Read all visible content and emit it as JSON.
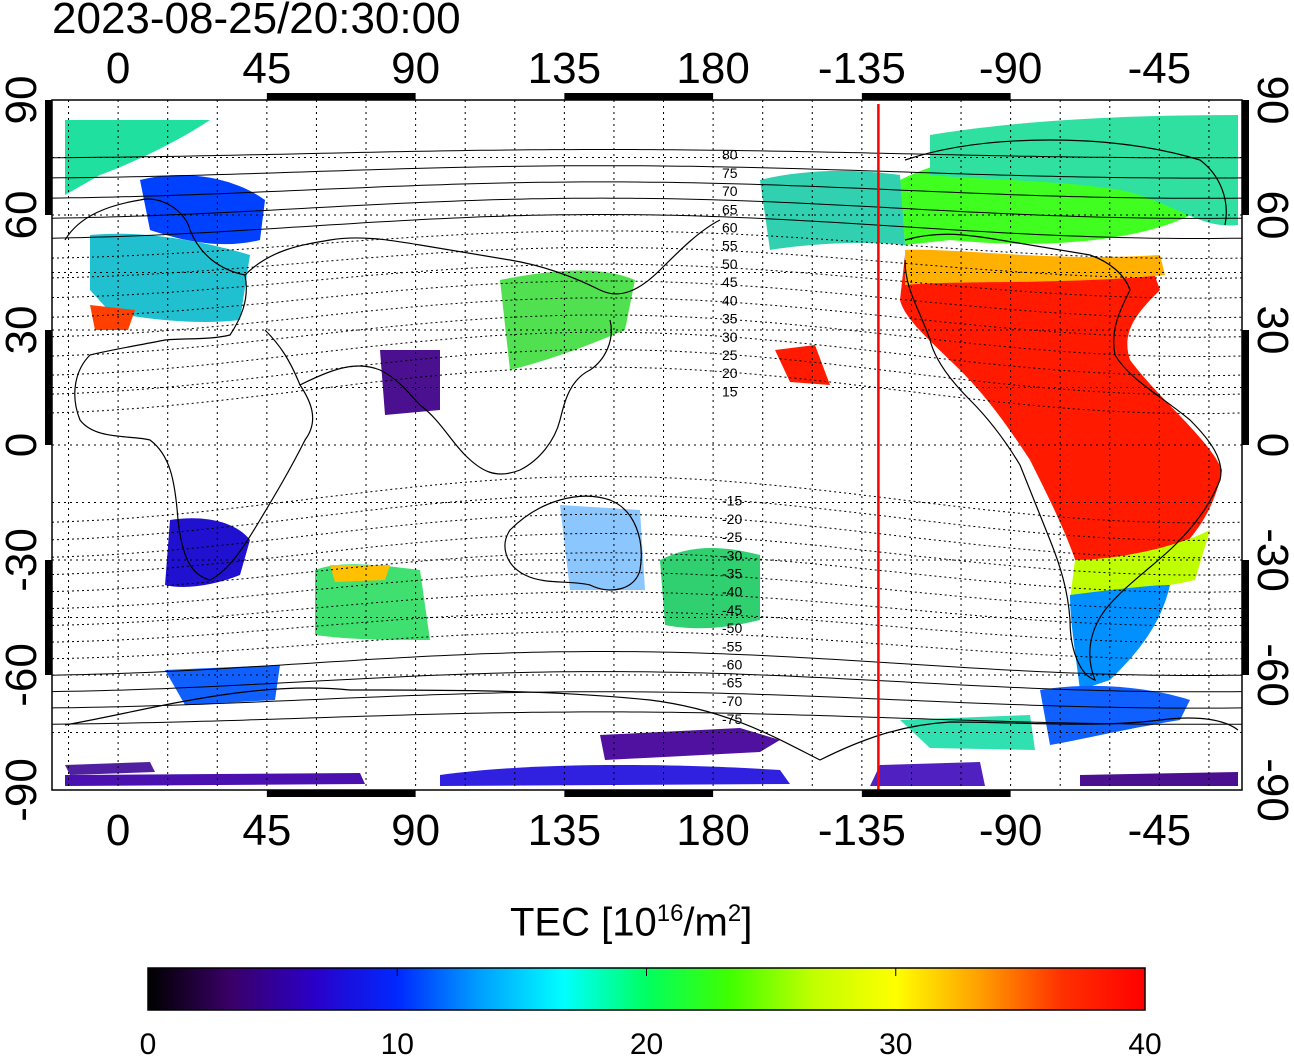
{
  "title": "2023-08-25/20:30:00",
  "map": {
    "top_lon_labels": [
      "0",
      "45",
      "90",
      "135",
      "180",
      "-135",
      "-90",
      "-45"
    ],
    "bottom_lon_labels": [
      "0",
      "45",
      "90",
      "135",
      "180",
      "-135",
      "-90",
      "-45"
    ],
    "left_lat_labels": [
      "90",
      "60",
      "30",
      "0",
      "-30",
      "-60",
      "-90"
    ],
    "right_lat_labels": [
      "90",
      "60",
      "30",
      "0",
      "-30",
      "-60",
      "-90"
    ],
    "lon_range": [
      -20,
      340
    ],
    "lat_range": [
      -90,
      90
    ],
    "grid": "dotted",
    "terminator_lon": -130,
    "terminator_color": "#ff0000",
    "mag_lat_labels": [
      "80",
      "75",
      "70",
      "65",
      "60",
      "55",
      "50",
      "45",
      "40",
      "35",
      "30",
      "25",
      "20",
      "15",
      "-15",
      "-20",
      "-25",
      "-30",
      "-35",
      "-40",
      "-45",
      "-50",
      "-55",
      "-60",
      "-65",
      "-70",
      "-75"
    ]
  },
  "colorbar": {
    "label_main": "TEC  [10",
    "label_sup1": "16",
    "label_mid": "/m",
    "label_sup2": "2",
    "label_end": "]",
    "ticks": [
      "0",
      "10",
      "20",
      "30",
      "40"
    ],
    "min": 0,
    "max": 40,
    "colors": [
      "#000000",
      "#3a0068",
      "#2a00c8",
      "#0028ff",
      "#00a0ff",
      "#00ffff",
      "#00ff60",
      "#40ff00",
      "#c0ff00",
      "#ffff00",
      "#ffa000",
      "#ff3000",
      "#ff0000"
    ]
  }
}
